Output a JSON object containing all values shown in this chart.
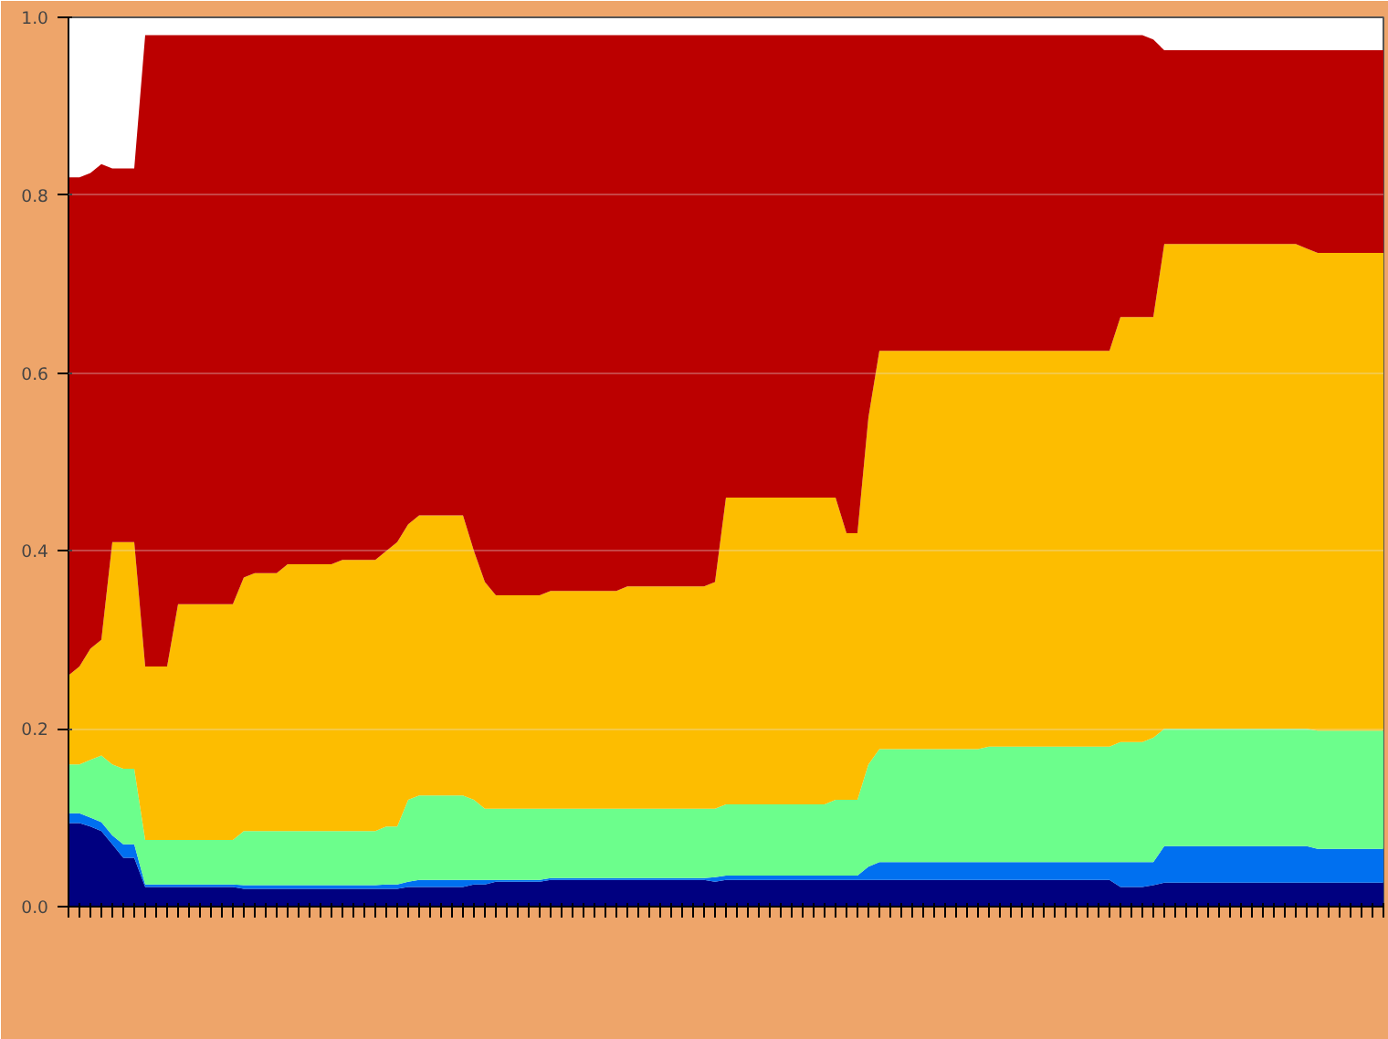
{
  "chart_data": {
    "type": "area",
    "stacked": true,
    "categories": [
      null,
      null,
      null,
      null,
      null,
      null,
      null,
      null,
      null,
      null,
      null,
      null,
      null,
      null,
      null,
      null,
      null,
      null,
      null,
      null,
      null,
      null,
      null,
      null,
      null,
      null,
      null,
      null,
      null,
      null,
      null,
      null,
      null,
      null,
      null,
      null,
      null,
      null,
      null,
      null,
      null,
      null,
      null,
      null,
      null,
      null,
      null,
      null,
      null,
      null,
      null,
      null,
      null,
      null,
      null,
      null,
      null,
      null,
      null,
      null,
      null,
      null,
      null,
      null,
      null,
      null,
      null,
      null,
      null,
      null,
      null,
      null,
      null,
      null,
      null,
      null,
      null,
      null,
      null,
      null,
      null,
      null,
      null,
      null,
      null,
      null,
      null,
      null,
      null,
      null,
      null,
      null,
      null,
      null,
      null,
      null,
      null,
      null,
      null,
      null,
      null,
      null,
      null,
      null,
      null,
      null,
      null,
      null,
      null,
      null,
      null,
      null,
      null,
      null,
      null,
      null,
      null,
      null,
      null,
      null,
      null
    ],
    "series": [
      {
        "color": "#000080",
        "values": [
          0.094,
          0.094,
          0.09,
          0.085,
          0.07,
          0.055,
          0.055,
          0.022,
          0.022,
          0.022,
          0.022,
          0.022,
          0.022,
          0.022,
          0.022,
          0.022,
          0.02,
          0.02,
          0.02,
          0.02,
          0.02,
          0.02,
          0.02,
          0.02,
          0.02,
          0.02,
          0.02,
          0.02,
          0.02,
          0.02,
          0.02,
          0.022,
          0.022,
          0.022,
          0.022,
          0.022,
          0.022,
          0.025,
          0.025,
          0.028,
          0.028,
          0.028,
          0.028,
          0.028,
          0.03,
          0.03,
          0.03,
          0.03,
          0.03,
          0.03,
          0.03,
          0.03,
          0.03,
          0.03,
          0.03,
          0.03,
          0.03,
          0.03,
          0.03,
          0.028,
          0.03,
          0.03,
          0.03,
          0.03,
          0.03,
          0.03,
          0.03,
          0.03,
          0.03,
          0.03,
          0.03,
          0.03,
          0.03,
          0.03,
          0.03,
          0.03,
          0.03,
          0.03,
          0.03,
          0.03,
          0.03,
          0.03,
          0.03,
          0.03,
          0.03,
          0.03,
          0.03,
          0.03,
          0.03,
          0.03,
          0.03,
          0.03,
          0.03,
          0.03,
          0.03,
          0.03,
          0.022,
          0.022,
          0.022,
          0.024,
          0.027,
          0.027,
          0.027,
          0.027,
          0.027,
          0.027,
          0.027,
          0.027,
          0.027,
          0.027,
          0.027,
          0.027,
          0.027,
          0.027,
          0.027,
          0.027,
          0.027,
          0.027,
          0.027,
          0.027,
          0.027
        ]
      },
      {
        "color": "#0070f0",
        "values": [
          0.011,
          0.011,
          0.01,
          0.01,
          0.01,
          0.015,
          0.015,
          0.003,
          0.003,
          0.003,
          0.003,
          0.003,
          0.003,
          0.003,
          0.003,
          0.003,
          0.004,
          0.004,
          0.004,
          0.004,
          0.004,
          0.004,
          0.004,
          0.004,
          0.004,
          0.004,
          0.004,
          0.004,
          0.004,
          0.005,
          0.005,
          0.006,
          0.008,
          0.008,
          0.008,
          0.008,
          0.008,
          0.005,
          0.005,
          0.002,
          0.002,
          0.002,
          0.002,
          0.002,
          0.002,
          0.002,
          0.002,
          0.002,
          0.002,
          0.002,
          0.002,
          0.002,
          0.002,
          0.002,
          0.002,
          0.002,
          0.002,
          0.002,
          0.002,
          0.005,
          0.005,
          0.005,
          0.005,
          0.005,
          0.005,
          0.005,
          0.005,
          0.005,
          0.005,
          0.005,
          0.005,
          0.005,
          0.005,
          0.015,
          0.02,
          0.02,
          0.02,
          0.02,
          0.02,
          0.02,
          0.02,
          0.02,
          0.02,
          0.02,
          0.02,
          0.02,
          0.02,
          0.02,
          0.02,
          0.02,
          0.02,
          0.02,
          0.02,
          0.02,
          0.02,
          0.02,
          0.028,
          0.028,
          0.028,
          0.026,
          0.041,
          0.041,
          0.041,
          0.041,
          0.041,
          0.041,
          0.041,
          0.041,
          0.041,
          0.041,
          0.041,
          0.041,
          0.041,
          0.041,
          0.038,
          0.038,
          0.038,
          0.038,
          0.038,
          0.038,
          0.038
        ]
      },
      {
        "color": "#6cfe8c",
        "values": [
          0.055,
          0.055,
          0.065,
          0.075,
          0.08,
          0.085,
          0.085,
          0.05,
          0.05,
          0.05,
          0.05,
          0.05,
          0.05,
          0.05,
          0.05,
          0.05,
          0.061,
          0.061,
          0.061,
          0.061,
          0.061,
          0.061,
          0.061,
          0.061,
          0.061,
          0.061,
          0.061,
          0.061,
          0.061,
          0.065,
          0.065,
          0.092,
          0.095,
          0.095,
          0.095,
          0.095,
          0.095,
          0.09,
          0.08,
          0.08,
          0.08,
          0.08,
          0.08,
          0.08,
          0.078,
          0.078,
          0.078,
          0.078,
          0.078,
          0.078,
          0.078,
          0.078,
          0.078,
          0.078,
          0.078,
          0.078,
          0.078,
          0.078,
          0.078,
          0.077,
          0.08,
          0.08,
          0.08,
          0.08,
          0.08,
          0.08,
          0.08,
          0.08,
          0.08,
          0.08,
          0.085,
          0.085,
          0.085,
          0.115,
          0.127,
          0.127,
          0.127,
          0.127,
          0.127,
          0.127,
          0.127,
          0.127,
          0.127,
          0.127,
          0.13,
          0.13,
          0.13,
          0.13,
          0.13,
          0.13,
          0.13,
          0.13,
          0.13,
          0.13,
          0.13,
          0.13,
          0.135,
          0.135,
          0.135,
          0.14,
          0.132,
          0.132,
          0.132,
          0.132,
          0.132,
          0.132,
          0.132,
          0.132,
          0.132,
          0.132,
          0.132,
          0.132,
          0.132,
          0.132,
          0.133,
          0.133,
          0.133,
          0.133,
          0.133,
          0.133,
          0.133
        ]
      },
      {
        "color": "#fdbd00",
        "values": [
          0.1,
          0.11,
          0.125,
          0.13,
          0.25,
          0.255,
          0.255,
          0.195,
          0.195,
          0.195,
          0.265,
          0.265,
          0.265,
          0.265,
          0.265,
          0.265,
          0.285,
          0.29,
          0.29,
          0.29,
          0.3,
          0.3,
          0.3,
          0.3,
          0.3,
          0.305,
          0.305,
          0.305,
          0.305,
          0.31,
          0.32,
          0.31,
          0.315,
          0.315,
          0.315,
          0.315,
          0.315,
          0.28,
          0.255,
          0.24,
          0.24,
          0.24,
          0.24,
          0.24,
          0.245,
          0.245,
          0.245,
          0.245,
          0.245,
          0.245,
          0.245,
          0.25,
          0.25,
          0.25,
          0.25,
          0.25,
          0.25,
          0.25,
          0.25,
          0.255,
          0.345,
          0.345,
          0.345,
          0.345,
          0.345,
          0.345,
          0.345,
          0.345,
          0.345,
          0.345,
          0.34,
          0.3,
          0.3,
          0.39,
          0.448,
          0.448,
          0.448,
          0.448,
          0.448,
          0.448,
          0.448,
          0.448,
          0.448,
          0.448,
          0.445,
          0.445,
          0.445,
          0.445,
          0.445,
          0.445,
          0.445,
          0.445,
          0.445,
          0.445,
          0.445,
          0.445,
          0.478,
          0.478,
          0.478,
          0.473,
          0.545,
          0.545,
          0.545,
          0.545,
          0.545,
          0.545,
          0.545,
          0.545,
          0.545,
          0.545,
          0.545,
          0.545,
          0.545,
          0.54,
          0.537,
          0.537,
          0.537,
          0.537,
          0.537,
          0.537,
          0.537
        ]
      },
      {
        "color": "#bb0000",
        "values": [
          0.56,
          0.55,
          0.535,
          0.535,
          0.42,
          0.42,
          0.42,
          0.71,
          0.71,
          0.71,
          0.64,
          0.64,
          0.64,
          0.64,
          0.64,
          0.64,
          0.61,
          0.605,
          0.605,
          0.605,
          0.595,
          0.595,
          0.595,
          0.595,
          0.595,
          0.59,
          0.59,
          0.59,
          0.59,
          0.58,
          0.57,
          0.55,
          0.54,
          0.54,
          0.54,
          0.54,
          0.54,
          0.58,
          0.615,
          0.63,
          0.63,
          0.63,
          0.63,
          0.63,
          0.625,
          0.625,
          0.625,
          0.625,
          0.625,
          0.625,
          0.625,
          0.62,
          0.62,
          0.62,
          0.62,
          0.62,
          0.62,
          0.62,
          0.62,
          0.615,
          0.52,
          0.52,
          0.52,
          0.52,
          0.52,
          0.52,
          0.52,
          0.52,
          0.52,
          0.52,
          0.52,
          0.56,
          0.56,
          0.43,
          0.355,
          0.355,
          0.355,
          0.355,
          0.355,
          0.355,
          0.355,
          0.355,
          0.355,
          0.355,
          0.355,
          0.355,
          0.355,
          0.355,
          0.355,
          0.355,
          0.355,
          0.355,
          0.355,
          0.355,
          0.355,
          0.355,
          0.317,
          0.317,
          0.317,
          0.312,
          0.218,
          0.218,
          0.218,
          0.218,
          0.218,
          0.218,
          0.218,
          0.218,
          0.218,
          0.218,
          0.218,
          0.218,
          0.218,
          0.223,
          0.228,
          0.228,
          0.228,
          0.228,
          0.228,
          0.228,
          0.228
        ]
      }
    ],
    "ylim": [
      0,
      1
    ],
    "yticks": [
      {
        "value": 0,
        "label": "0.0"
      },
      0.2,
      0.4,
      0.6,
      0.8,
      {
        "value": 1,
        "label": "1.0"
      }
    ],
    "grid": "y"
  }
}
